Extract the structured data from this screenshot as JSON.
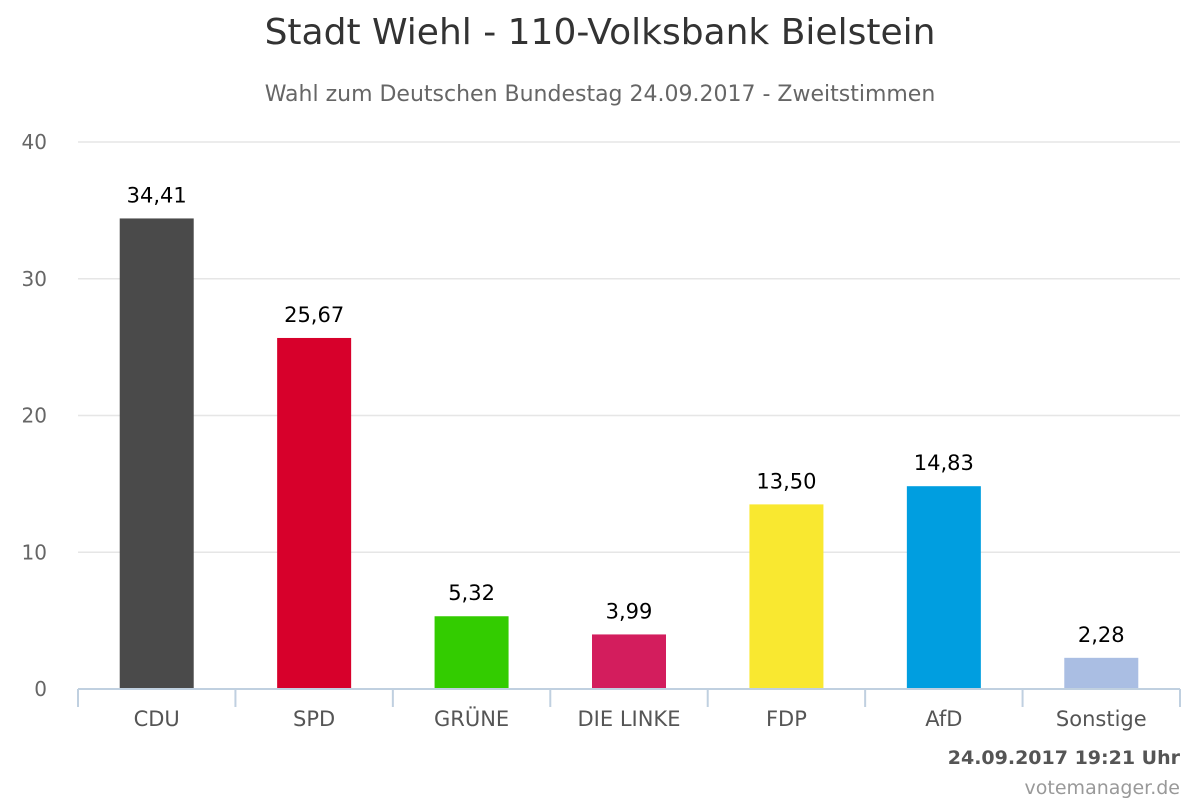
{
  "chart_data": {
    "type": "bar",
    "title": "Stadt Wiehl - 110-Volksbank Bielstein",
    "subtitle": "Wahl zum Deutschen Bundestag 24.09.2017 - Zweitstimmen",
    "categories": [
      "CDU",
      "SPD",
      "GRÜNE",
      "DIE LINKE",
      "FDP",
      "AfD",
      "Sonstige"
    ],
    "values": [
      34.41,
      25.67,
      5.32,
      3.99,
      13.5,
      14.83,
      2.28
    ],
    "value_labels": [
      "34,41",
      "25,67",
      "5,32",
      "3,99",
      "13,50",
      "14,83",
      "2,28"
    ],
    "colors": [
      "#4a4a4a",
      "#d7002b",
      "#33cc00",
      "#d31d5d",
      "#f9e830",
      "#009ee0",
      "#aabee3"
    ],
    "ylim": [
      0,
      40
    ],
    "yticks": [
      0,
      10,
      20,
      30,
      40
    ],
    "grid": true,
    "legend": "none"
  },
  "footer": {
    "timestamp": "24.09.2017 19:21 Uhr",
    "credits": "votemanager.de"
  }
}
